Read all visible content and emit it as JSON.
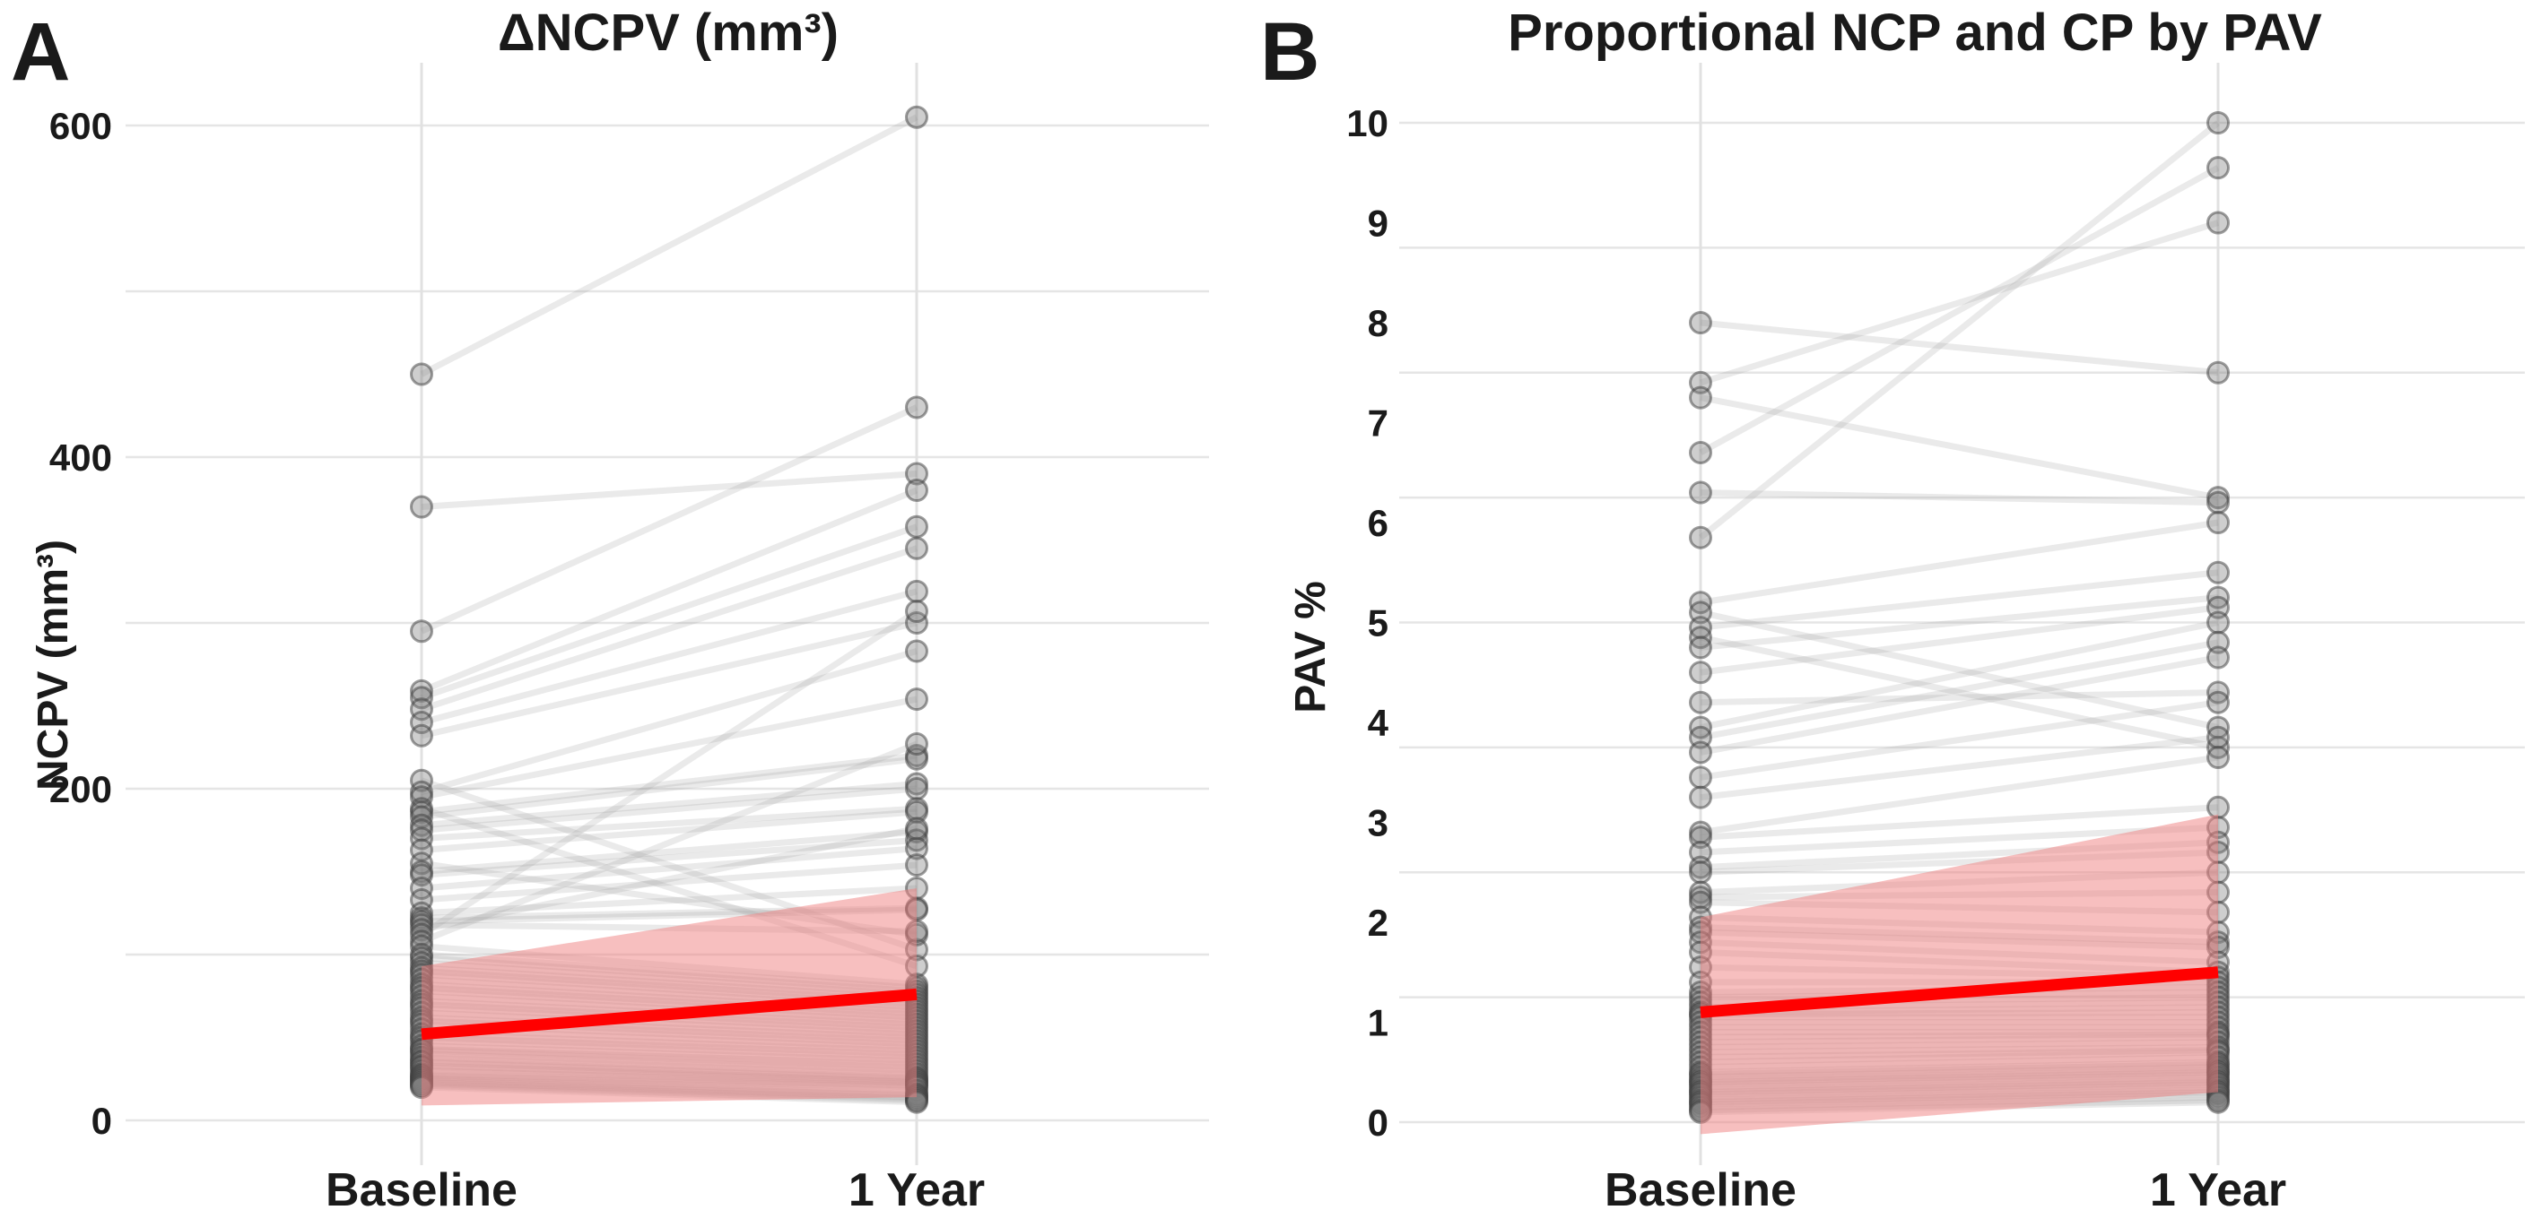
{
  "colors": {
    "trend": "#ff0000",
    "band": "#f08080",
    "point": "#7d7d7d",
    "case_line": "#a0a0a0",
    "grid": "#e5e5e5",
    "text": "#1a1a1a",
    "background": "#ffffff"
  },
  "chart_data": [
    {
      "type": "line",
      "subtype": "paired-spaghetti",
      "panel_label": "A",
      "title": "ΔNCPV (mm³)",
      "ylabel": "NCPV (mm³)",
      "xlabel": "",
      "categories": [
        "Baseline",
        "1 Year"
      ],
      "ylim": [
        0,
        620
      ],
      "yticks": [
        0,
        200,
        400,
        600
      ],
      "gridline_values": [
        0,
        100,
        200,
        300,
        400,
        500,
        600
      ],
      "grid": true,
      "legend_position": "none",
      "trend": {
        "baseline": 52,
        "year1": 76
      },
      "ci": {
        "baseline": [
          9,
          93
        ],
        "year1": [
          14,
          140
        ]
      },
      "pairs": [
        [
          450,
          605
        ],
        [
          370,
          390
        ],
        [
          295,
          430
        ],
        [
          259,
          380
        ],
        [
          255,
          358
        ],
        [
          248,
          345
        ],
        [
          240,
          319
        ],
        [
          232,
          300
        ],
        [
          205,
          103
        ],
        [
          198,
          283
        ],
        [
          195,
          254
        ],
        [
          188,
          93
        ],
        [
          186,
          220
        ],
        [
          183,
          218
        ],
        [
          178,
          203
        ],
        [
          175,
          200
        ],
        [
          170,
          188
        ],
        [
          163,
          186
        ],
        [
          155,
          112
        ],
        [
          150,
          174
        ],
        [
          148,
          169
        ],
        [
          140,
          164
        ],
        [
          133,
          154
        ],
        [
          125,
          140
        ],
        [
          122,
          128
        ],
        [
          120,
          127
        ],
        [
          118,
          114
        ],
        [
          115,
          176
        ],
        [
          112,
          307
        ],
        [
          108,
          227
        ],
        [
          105,
          82
        ],
        [
          100,
          80
        ],
        [
          98,
          78
        ],
        [
          95,
          76
        ],
        [
          92,
          74
        ],
        [
          90,
          72
        ],
        [
          88,
          70
        ],
        [
          85,
          68
        ],
        [
          82,
          66
        ],
        [
          80,
          64
        ],
        [
          78,
          62
        ],
        [
          75,
          60
        ],
        [
          72,
          58
        ],
        [
          70,
          56
        ],
        [
          68,
          54
        ],
        [
          65,
          52
        ],
        [
          62,
          50
        ],
        [
          60,
          48
        ],
        [
          58,
          46
        ],
        [
          55,
          44
        ],
        [
          52,
          42
        ],
        [
          50,
          40
        ],
        [
          48,
          38
        ],
        [
          45,
          36
        ],
        [
          43,
          34
        ],
        [
          42,
          32
        ],
        [
          40,
          30
        ],
        [
          38,
          28
        ],
        [
          36,
          26
        ],
        [
          35,
          25
        ],
        [
          33,
          24
        ],
        [
          32,
          23
        ],
        [
          30,
          22
        ],
        [
          28,
          21
        ],
        [
          27,
          20
        ],
        [
          26,
          18
        ],
        [
          25,
          16
        ],
        [
          24,
          15
        ],
        [
          23,
          14
        ],
        [
          22,
          13
        ],
        [
          21,
          12
        ],
        [
          20,
          11
        ]
      ]
    },
    {
      "type": "line",
      "subtype": "paired-spaghetti",
      "panel_label": "B",
      "title": "Proportional NCP and CP by PAV",
      "ylabel": "PAV %",
      "xlabel": "",
      "categories": [
        "Baseline",
        "1 Year"
      ],
      "ylim": [
        -0.3,
        10.2
      ],
      "yticks": [
        0,
        1,
        2,
        3,
        4,
        5,
        6,
        7,
        8,
        9,
        10
      ],
      "gridline_values": [
        0,
        1.25,
        2.5,
        3.75,
        5,
        6.25,
        7.5,
        8.75,
        10
      ],
      "grid": true,
      "legend_position": "none",
      "trend": {
        "baseline": 1.1,
        "year1": 1.5
      },
      "ci": {
        "baseline": [
          -0.12,
          2.05
        ],
        "year1": [
          0.3,
          3.08
        ]
      },
      "pairs": [
        [
          8.0,
          7.5
        ],
        [
          7.4,
          9.0
        ],
        [
          7.25,
          6.25
        ],
        [
          6.7,
          9.55
        ],
        [
          6.3,
          6.2
        ],
        [
          5.85,
          10.0
        ],
        [
          5.2,
          6.0
        ],
        [
          5.1,
          3.95
        ],
        [
          4.95,
          5.5
        ],
        [
          4.85,
          3.75
        ],
        [
          4.75,
          5.25
        ],
        [
          4.5,
          5.15
        ],
        [
          4.2,
          4.3
        ],
        [
          3.95,
          5.0
        ],
        [
          3.85,
          4.8
        ],
        [
          3.7,
          4.65
        ],
        [
          3.45,
          4.2
        ],
        [
          3.25,
          3.85
        ],
        [
          2.9,
          3.65
        ],
        [
          2.85,
          3.15
        ],
        [
          2.7,
          2.95
        ],
        [
          2.55,
          2.8
        ],
        [
          2.5,
          2.7
        ],
        [
          2.3,
          2.5
        ],
        [
          2.25,
          2.3
        ],
        [
          2.2,
          2.1
        ],
        [
          2.05,
          1.9
        ],
        [
          1.95,
          1.8
        ],
        [
          1.9,
          1.75
        ],
        [
          1.8,
          1.6
        ],
        [
          1.7,
          1.5
        ],
        [
          1.55,
          1.45
        ],
        [
          1.4,
          1.4
        ],
        [
          1.3,
          1.35
        ],
        [
          1.25,
          1.3
        ],
        [
          1.2,
          1.25
        ],
        [
          1.15,
          1.2
        ],
        [
          1.1,
          1.15
        ],
        [
          1.08,
          1.1
        ],
        [
          1.05,
          1.05
        ],
        [
          1.0,
          1.0
        ],
        [
          0.95,
          0.95
        ],
        [
          0.9,
          0.9
        ],
        [
          0.85,
          0.88
        ],
        [
          0.8,
          0.85
        ],
        [
          0.75,
          0.8
        ],
        [
          0.7,
          0.75
        ],
        [
          0.65,
          0.72
        ],
        [
          0.6,
          0.7
        ],
        [
          0.55,
          0.65
        ],
        [
          0.5,
          0.6
        ],
        [
          0.48,
          0.58
        ],
        [
          0.45,
          0.55
        ],
        [
          0.42,
          0.52
        ],
        [
          0.4,
          0.5
        ],
        [
          0.38,
          0.48
        ],
        [
          0.35,
          0.45
        ],
        [
          0.32,
          0.42
        ],
        [
          0.3,
          0.4
        ],
        [
          0.28,
          0.38
        ],
        [
          0.25,
          0.35
        ],
        [
          0.22,
          0.32
        ],
        [
          0.2,
          0.3
        ],
        [
          0.18,
          0.28
        ],
        [
          0.15,
          0.25
        ],
        [
          0.12,
          0.22
        ],
        [
          0.1,
          0.2
        ]
      ]
    }
  ]
}
